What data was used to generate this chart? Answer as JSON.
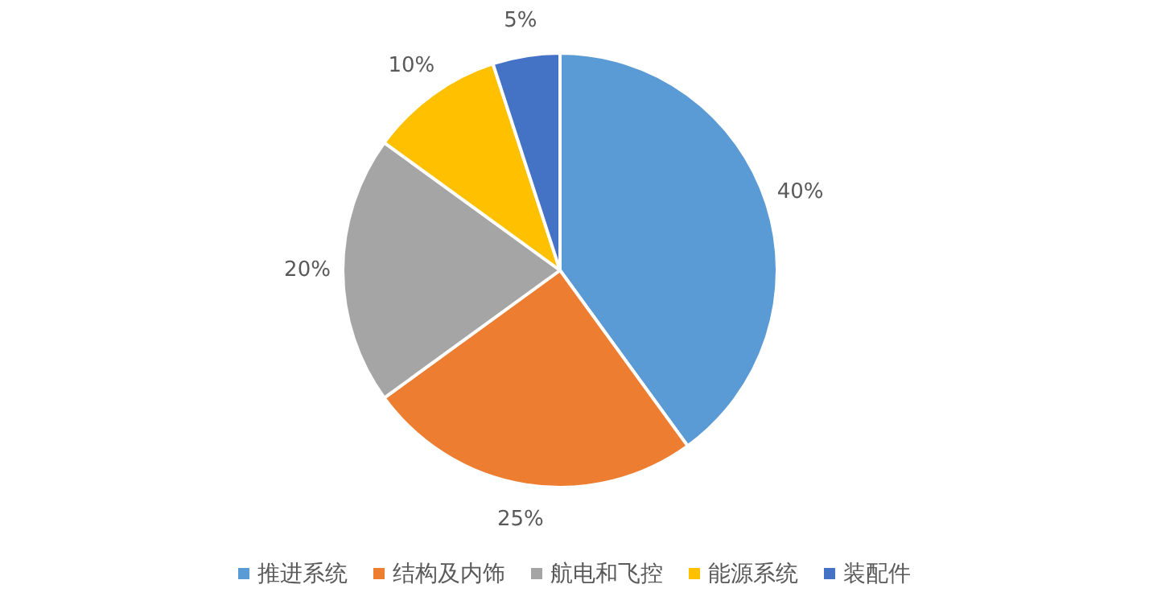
{
  "chart_data": {
    "type": "pie",
    "categories": [
      "推进系统",
      "结构及内饰",
      "航电和飞控",
      "能源系统",
      "装配件"
    ],
    "values": [
      40,
      25,
      20,
      10,
      5
    ],
    "colors": [
      "#5b9bd5",
      "#ed7d31",
      "#a5a5a5",
      "#ffc000",
      "#4472c4"
    ],
    "value_labels": [
      "40%",
      "25%",
      "20%",
      "10%",
      "5%"
    ],
    "legend": "bottom"
  }
}
